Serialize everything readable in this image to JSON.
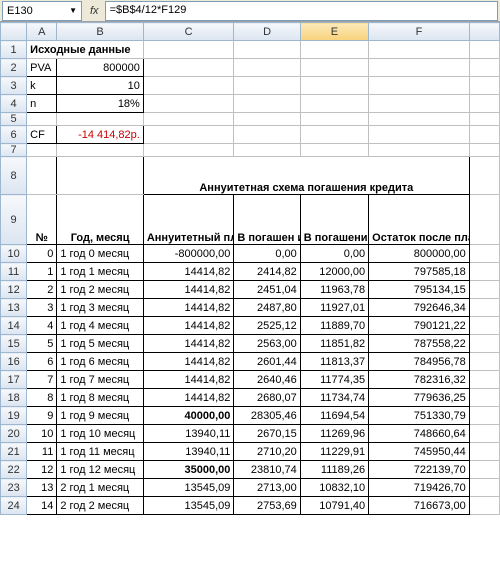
{
  "formula_bar": {
    "cell_ref": "E130",
    "fx_label": "fx",
    "formula": "=$B$4/12*F129"
  },
  "columns": {
    "widths": [
      26,
      30,
      86,
      90,
      66,
      68,
      100,
      30
    ],
    "headers": [
      "",
      "A",
      "B",
      "C",
      "D",
      "E",
      "F",
      ""
    ],
    "selected_index": 5
  },
  "rows": {
    "header": {
      "title1": "Исходные данные"
    },
    "r2": {
      "a": "PVA",
      "b": "800000"
    },
    "r3": {
      "a": "k",
      "b": "10"
    },
    "r4": {
      "a": "n",
      "b": "18%"
    },
    "r6": {
      "a": "CF",
      "b": "-14 414,82р."
    },
    "r8": {
      "title": "Аннуитетная схема погашения кредита"
    },
    "r9": {
      "a": "№",
      "b": "Год, месяц",
      "c": "Аннуитетный платёж",
      "d": "В погашен ие долга",
      "e": "В погашение процентов",
      "f": "Остаток после платежа"
    }
  },
  "data_rows": [
    {
      "n": "0",
      "m": "1 год 0 месяц",
      "c": "-800000,00",
      "d": "0,00",
      "e": "0,00",
      "f": "800000,00"
    },
    {
      "n": "1",
      "m": "1 год 1 месяц",
      "c": "14414,82",
      "d": "2414,82",
      "e": "12000,00",
      "f": "797585,18"
    },
    {
      "n": "2",
      "m": "1 год 2 месяц",
      "c": "14414,82",
      "d": "2451,04",
      "e": "11963,78",
      "f": "795134,15"
    },
    {
      "n": "3",
      "m": "1 год 3 месяц",
      "c": "14414,82",
      "d": "2487,80",
      "e": "11927,01",
      "f": "792646,34"
    },
    {
      "n": "4",
      "m": "1 год 4 месяц",
      "c": "14414,82",
      "d": "2525,12",
      "e": "11889,70",
      "f": "790121,22"
    },
    {
      "n": "5",
      "m": "1 год 5 месяц",
      "c": "14414,82",
      "d": "2563,00",
      "e": "11851,82",
      "f": "787558,22"
    },
    {
      "n": "6",
      "m": "1 год 6 месяц",
      "c": "14414,82",
      "d": "2601,44",
      "e": "11813,37",
      "f": "784956,78"
    },
    {
      "n": "7",
      "m": "1 год 7 месяц",
      "c": "14414,82",
      "d": "2640,46",
      "e": "11774,35",
      "f": "782316,32"
    },
    {
      "n": "8",
      "m": "1 год 8 месяц",
      "c": "14414,82",
      "d": "2680,07",
      "e": "11734,74",
      "f": "779636,25"
    },
    {
      "n": "9",
      "m": "1 год 9 месяц",
      "c": "40000,00",
      "d": "28305,46",
      "e": "11694,54",
      "f": "751330,79",
      "hl": true
    },
    {
      "n": "10",
      "m": "1 год 10 месяц",
      "c": "13940,11",
      "d": "2670,15",
      "e": "11269,96",
      "f": "748660,64"
    },
    {
      "n": "11",
      "m": "1 год 11 месяц",
      "c": "13940,11",
      "d": "2710,20",
      "e": "11229,91",
      "f": "745950,44"
    },
    {
      "n": "12",
      "m": "1 год 12 месяц",
      "c": "35000,00",
      "d": "23810,74",
      "e": "11189,26",
      "f": "722139,70",
      "hl": true
    },
    {
      "n": "13",
      "m": "2 год 1 месяц",
      "c": "13545,09",
      "d": "2713,00",
      "e": "10832,10",
      "f": "719426,70"
    },
    {
      "n": "14",
      "m": "2 год 2 месяц",
      "c": "13545,09",
      "d": "2753,69",
      "e": "10791,40",
      "f": "716673,00"
    }
  ],
  "styling": {
    "header_bg": "#e4ecf7",
    "grid_line": "#c0c0c0",
    "highlight_bg": "#ffff99",
    "negative_color": "#cc0000",
    "font_size_pt": 8,
    "selected_header_bg": "#f8d27a"
  }
}
